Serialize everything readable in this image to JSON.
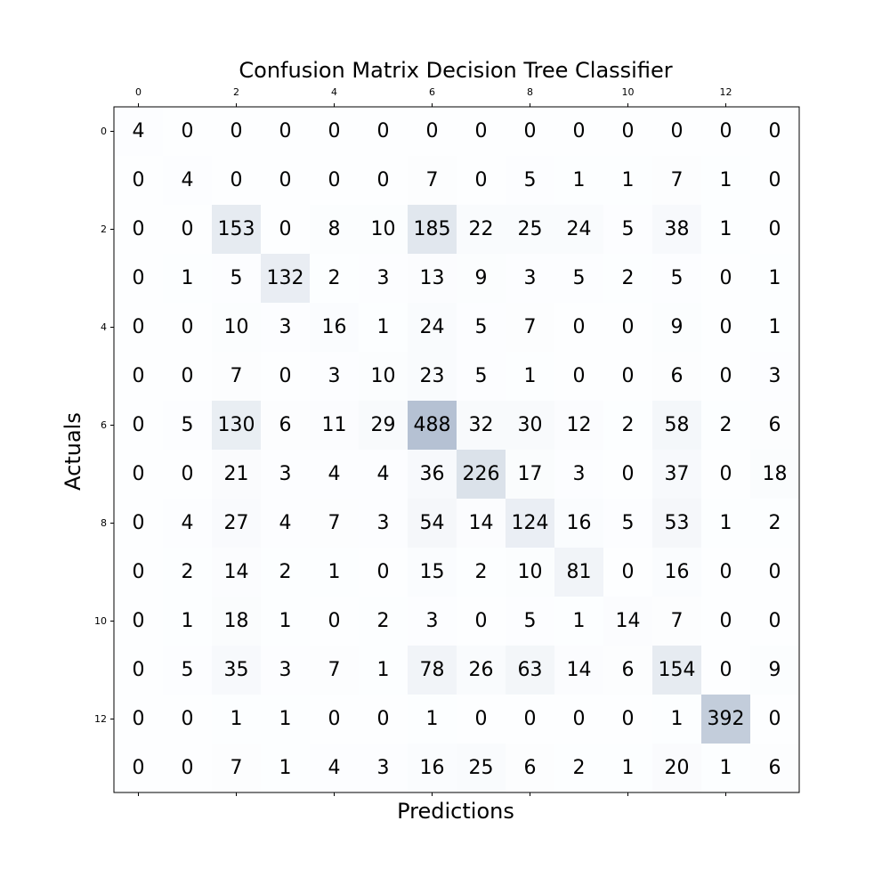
{
  "chart_data": {
    "type": "heatmap",
    "title": "Confusion Matrix Decision Tree Classifier",
    "xlabel": "Predictions",
    "ylabel": "Actuals",
    "x_ticks": [
      "0",
      "2",
      "4",
      "6",
      "8",
      "10",
      "12"
    ],
    "y_ticks": [
      "0",
      "2",
      "4",
      "6",
      "8",
      "10",
      "12"
    ],
    "tick_values": [
      0,
      2,
      4,
      6,
      8,
      10,
      12
    ],
    "n_classes": 14,
    "colormap": {
      "low": "#f7fbff",
      "high": "#08306b",
      "alpha": 0.3
    },
    "matrix": [
      [
        4,
        0,
        0,
        0,
        0,
        0,
        0,
        0,
        0,
        0,
        0,
        0,
        0,
        0
      ],
      [
        0,
        4,
        0,
        0,
        0,
        0,
        7,
        0,
        5,
        1,
        1,
        7,
        1,
        0
      ],
      [
        0,
        0,
        153,
        0,
        8,
        10,
        185,
        22,
        25,
        24,
        5,
        38,
        1,
        0
      ],
      [
        0,
        1,
        5,
        132,
        2,
        3,
        13,
        9,
        3,
        5,
        2,
        5,
        0,
        1
      ],
      [
        0,
        0,
        10,
        3,
        16,
        1,
        24,
        5,
        7,
        0,
        0,
        9,
        0,
        1
      ],
      [
        0,
        0,
        7,
        0,
        3,
        10,
        23,
        5,
        1,
        0,
        0,
        6,
        0,
        3
      ],
      [
        0,
        5,
        130,
        6,
        11,
        29,
        488,
        32,
        30,
        12,
        2,
        58,
        2,
        6
      ],
      [
        0,
        0,
        21,
        3,
        4,
        4,
        36,
        226,
        17,
        3,
        0,
        37,
        0,
        18
      ],
      [
        0,
        4,
        27,
        4,
        7,
        3,
        54,
        14,
        124,
        16,
        5,
        53,
        1,
        2
      ],
      [
        0,
        2,
        14,
        2,
        1,
        0,
        15,
        2,
        10,
        81,
        0,
        16,
        0,
        0
      ],
      [
        0,
        1,
        18,
        1,
        0,
        2,
        3,
        0,
        5,
        1,
        14,
        7,
        0,
        0
      ],
      [
        0,
        5,
        35,
        3,
        7,
        1,
        78,
        26,
        63,
        14,
        6,
        154,
        0,
        9
      ],
      [
        0,
        0,
        1,
        1,
        0,
        0,
        1,
        0,
        0,
        0,
        0,
        1,
        392,
        0
      ],
      [
        0,
        0,
        7,
        1,
        4,
        3,
        16,
        25,
        6,
        2,
        1,
        20,
        1,
        6
      ]
    ]
  }
}
